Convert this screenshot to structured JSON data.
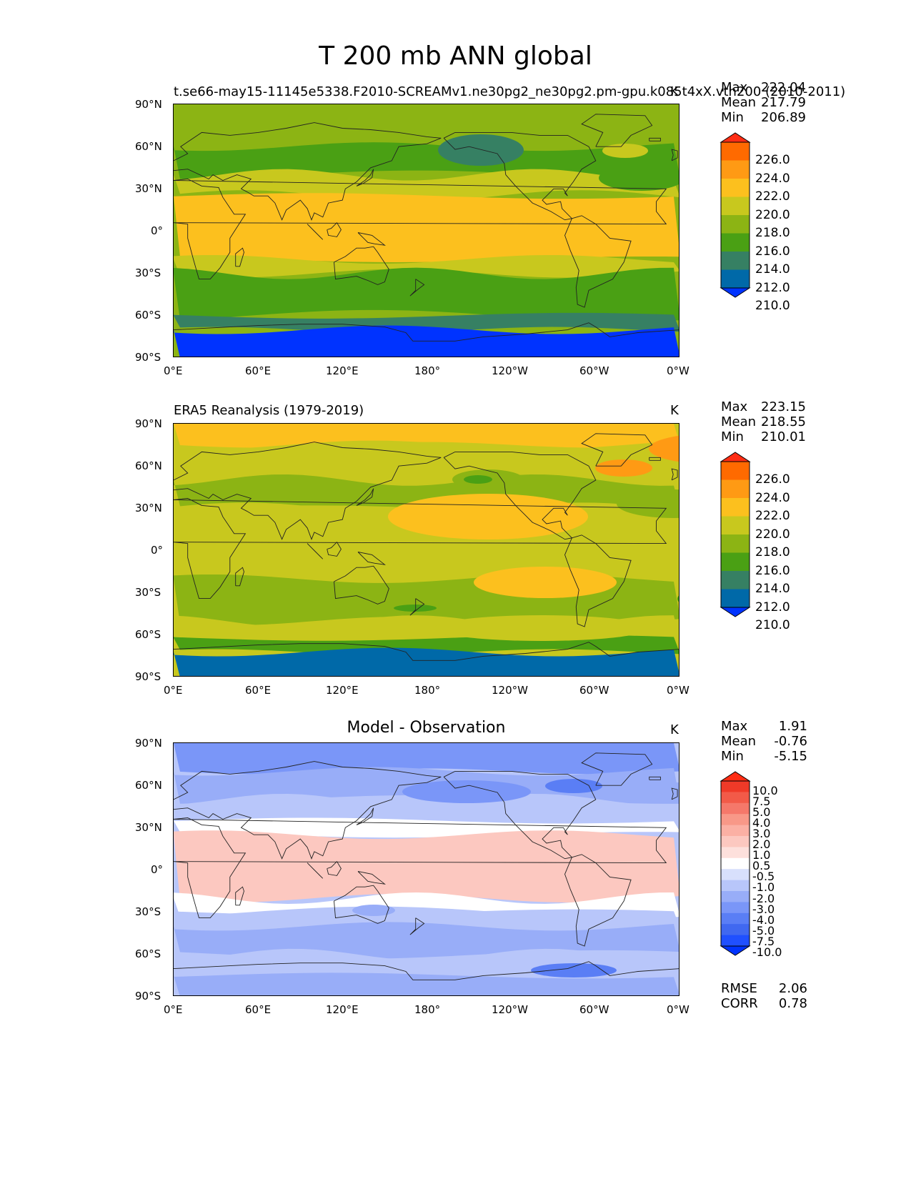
{
  "figure": {
    "title": "T 200 mb ANN global"
  },
  "axes": {
    "y_ticks": [
      "90°N",
      "60°N",
      "30°N",
      "0°",
      "30°S",
      "60°S",
      "90°S"
    ],
    "x_ticks": [
      "0°E",
      "60°E",
      "120°E",
      "180°",
      "120°W",
      "60°W",
      "0°W"
    ]
  },
  "panels": [
    {
      "title_left": "t.se66-may15-11145e5338.F2010-SCREAMv1.ne30pg2_ne30pg2.pm-gpu.k085t4xX.vth200 (2010-2011)",
      "title_center": "",
      "title_right": "K",
      "stats": {
        "max_label": "Max",
        "max": "222.04",
        "mean_label": "Mean",
        "mean": "217.79",
        "min_label": "Min",
        "min": "206.89"
      },
      "colorbar_labels": [
        "226.0",
        "224.0",
        "222.0",
        "220.0",
        "218.0",
        "216.0",
        "214.0",
        "212.0",
        "210.0"
      ]
    },
    {
      "title_left": "ERA5 Reanalysis (1979-2019)",
      "title_center": "",
      "title_right": "K",
      "stats": {
        "max_label": "Max",
        "max": "223.15",
        "mean_label": "Mean",
        "mean": "218.55",
        "min_label": "Min",
        "min": "210.01"
      },
      "colorbar_labels": [
        "226.0",
        "224.0",
        "222.0",
        "220.0",
        "218.0",
        "216.0",
        "214.0",
        "212.0",
        "210.0"
      ]
    },
    {
      "title_left": "",
      "title_center": "Model - Observation",
      "title_right": "K",
      "stats": {
        "max_label": "Max",
        "max": "1.91",
        "mean_label": "Mean",
        "mean": "-0.76",
        "min_label": "Min",
        "min": "-5.15",
        "rmse_label": "RMSE",
        "rmse": "2.06",
        "corr_label": "CORR",
        "corr": "0.78"
      },
      "colorbar_labels": [
        "10.0",
        "7.5",
        "5.0",
        "4.0",
        "3.0",
        "2.0",
        "1.0",
        "0.5",
        "-0.5",
        "-1.0",
        "-2.0",
        "-3.0",
        "-4.0",
        "-5.0",
        "-7.5",
        "-10.0"
      ]
    }
  ],
  "chart_data": [
    {
      "type": "heatmap",
      "title": "t.se66-may15-11145e5338.F2010-SCREAMv1.ne30pg2_ne30pg2.pm-gpu.k085t4xX.vth200 (2010-2011)",
      "units": "K",
      "xlim": [
        0,
        360
      ],
      "ylim": [
        -90,
        90
      ],
      "levels": [
        210,
        212,
        214,
        216,
        218,
        220,
        222,
        224,
        226
      ],
      "colors": [
        "#0033ff",
        "#0069a8",
        "#368063",
        "#4aa014",
        "#8cb414",
        "#c8c81e",
        "#fcc01e",
        "#ff9a14",
        "#ff6a00",
        "#ff2d14"
      ],
      "zonal_bands": [
        {
          "lat": [
            60,
            90
          ],
          "value": 217
        },
        {
          "lat": [
            40,
            60
          ],
          "value": 215
        },
        {
          "lat": [
            25,
            40
          ],
          "value": 218
        },
        {
          "lat": [
            -20,
            25
          ],
          "value": 221
        },
        {
          "lat": [
            -30,
            -20
          ],
          "value": 218
        },
        {
          "lat": [
            -60,
            -30
          ],
          "value": 215
        },
        {
          "lat": [
            -70,
            -60
          ],
          "value": 213
        },
        {
          "lat": [
            -90,
            -70
          ],
          "value": 209
        }
      ]
    },
    {
      "type": "heatmap",
      "title": "ERA5 Reanalysis (1979-2019)",
      "units": "K",
      "xlim": [
        0,
        360
      ],
      "ylim": [
        -90,
        90
      ],
      "levels": [
        210,
        212,
        214,
        216,
        218,
        220,
        222,
        224,
        226
      ],
      "colors": [
        "#0033ff",
        "#0069a8",
        "#368063",
        "#4aa014",
        "#8cb414",
        "#c8c81e",
        "#fcc01e",
        "#ff9a14",
        "#ff6a00",
        "#ff2d14"
      ],
      "zonal_bands": [
        {
          "lat": [
            75,
            90
          ],
          "value": 221
        },
        {
          "lat": [
            50,
            75
          ],
          "value": 219
        },
        {
          "lat": [
            30,
            50
          ],
          "value": 217
        },
        {
          "lat": [
            -20,
            30
          ],
          "value": 219
        },
        {
          "lat": [
            -50,
            -20
          ],
          "value": 217
        },
        {
          "lat": [
            -62,
            -50
          ],
          "value": 219
        },
        {
          "lat": [
            -72,
            -62
          ],
          "value": 215
        },
        {
          "lat": [
            -90,
            -72
          ],
          "value": 211
        }
      ]
    },
    {
      "type": "heatmap",
      "title": "Model - Observation",
      "units": "K",
      "xlim": [
        0,
        360
      ],
      "ylim": [
        -90,
        90
      ],
      "levels": [
        -10,
        -7.5,
        -5,
        -4,
        -3,
        -2,
        -1,
        -0.5,
        0.5,
        1,
        2,
        3,
        4,
        5,
        7.5,
        10
      ],
      "colors": [
        "#0033ff",
        "#2050ff",
        "#4068f0",
        "#5a7ef5",
        "#7a96f8",
        "#98adf8",
        "#b8c6fa",
        "#d8e0fc",
        "#ffffff",
        "#fde0dc",
        "#fcc8c0",
        "#fbb0a4",
        "#f89888",
        "#f5786a",
        "#f25a48",
        "#ef3a28",
        "#ff2d14"
      ],
      "zonal_bands": [
        {
          "lat": [
            70,
            90
          ],
          "value": -3.5
        },
        {
          "lat": [
            50,
            70
          ],
          "value": -2.5
        },
        {
          "lat": [
            35,
            50
          ],
          "value": -1.5
        },
        {
          "lat": [
            25,
            35
          ],
          "value": 0
        },
        {
          "lat": [
            -20,
            25
          ],
          "value": 1.5
        },
        {
          "lat": [
            -30,
            -20
          ],
          "value": 0
        },
        {
          "lat": [
            -40,
            -30
          ],
          "value": -1.5
        },
        {
          "lat": [
            -60,
            -40
          ],
          "value": -3
        },
        {
          "lat": [
            -75,
            -60
          ],
          "value": -2
        },
        {
          "lat": [
            -90,
            -75
          ],
          "value": -2.5
        }
      ]
    }
  ]
}
